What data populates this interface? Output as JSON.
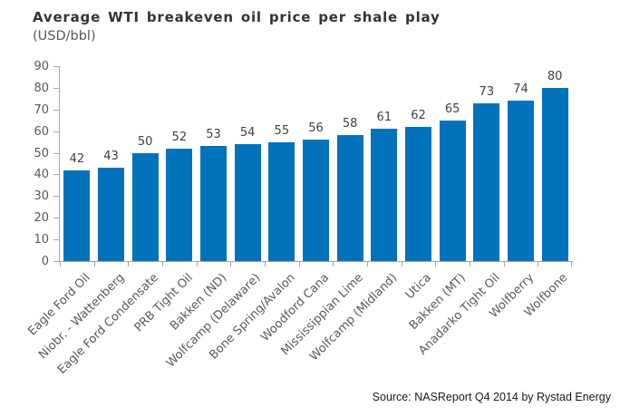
{
  "chart_data": {
    "type": "bar",
    "title": "Average WTI breakeven oil price per shale play",
    "subtitle": "(USD/bbl)",
    "categories": [
      "Eagle Ford Oil",
      "Niobr. - Wattenberg",
      "Eagle Ford Condensate",
      "PRB Tight Oil",
      "Bakken (ND)",
      "Wolfcamp (Delaware)",
      "Bone Spring/Avalon",
      "Woodford Cana",
      "Mississippian Lime",
      "Wolfcamp (Midland)",
      "Utica",
      "Bakken (MT)",
      "Anadarko Tight Oil",
      "Wolfberry",
      "Wolfbone"
    ],
    "values": [
      42,
      43,
      50,
      52,
      53,
      54,
      55,
      56,
      58,
      61,
      62,
      65,
      73,
      74,
      80
    ],
    "xlabel": "",
    "ylabel": "",
    "ylim": [
      0,
      90
    ],
    "ytick_step": 10,
    "grid": false,
    "legend": "none",
    "bar_color": "#0272bc",
    "axis_color": "#a6a6a6",
    "source": "Source: NASReport Q4 2014 by Rystad Energy"
  }
}
